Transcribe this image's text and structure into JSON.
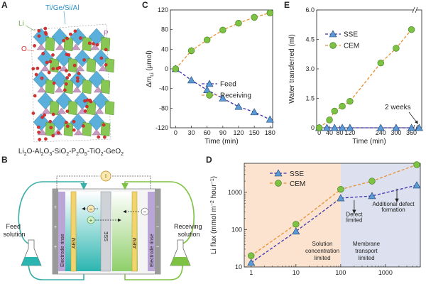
{
  "panels": {
    "A": {
      "letter": "A",
      "elements": {
        "li": "Li",
        "o": "O",
        "p": "P",
        "top": "Ti/Ge/Si/Al"
      },
      "formula_parts": [
        "Li",
        "2",
        "O-Al",
        "2",
        "O",
        "3",
        "-SiO",
        "2",
        "-P",
        "2",
        "O",
        "5",
        "-TiO",
        "2",
        "-GeO",
        "2"
      ]
    },
    "B": {
      "letter": "B",
      "feed": [
        "Feed",
        "solution"
      ],
      "receiving": [
        "Receiving",
        "solution"
      ],
      "electrode_rinse": "Electrode rinse",
      "aem": "AEM",
      "sse": "SSE",
      "minus": "−",
      "plus": "+",
      "meter": "I"
    },
    "C": {
      "letter": "C"
    },
    "D": {
      "letter": "D",
      "annotations": {
        "solution_limited": [
          "Solution",
          "concentration",
          "limited"
        ],
        "membrane_limited": [
          "Membrane",
          "transport",
          "limited"
        ],
        "defect": [
          "Defect",
          "limited"
        ],
        "additional": [
          "Additional defect",
          "formation"
        ]
      }
    },
    "E": {
      "letter": "E",
      "annotation": "2 weeks"
    }
  },
  "colors": {
    "sse": "#3a2fb0",
    "cem": "#e89030",
    "sse_marker": "#5b9bd5",
    "cem_marker": "#7dc242",
    "region_left": "#fbe3cf",
    "region_right": "#dde0ee",
    "green_membrane": "#7dc242",
    "blue_membrane": "#4aa8d8"
  },
  "chart_data": [
    {
      "id": "C",
      "type": "scatter",
      "xlabel": "Time (min)",
      "ylabel": "Δm_Li (μmol)",
      "ylabel_parts": [
        "Δ",
        "m",
        "Li",
        " (μmol)"
      ],
      "xlim": [
        -10,
        185
      ],
      "ylim": [
        -120,
        120
      ],
      "xticks": [
        0,
        30,
        60,
        90,
        120,
        150,
        180
      ],
      "yticks": [
        -120,
        -80,
        -40,
        0,
        40,
        80,
        120
      ],
      "legend_position": "center-right",
      "series": [
        {
          "name": "Feed",
          "color": "#3a2fb0",
          "marker": "triangle",
          "x": [
            0,
            30,
            60,
            90,
            120,
            150,
            180
          ],
          "y": [
            0,
            -23,
            -43,
            -60,
            -77,
            -88,
            -103
          ],
          "err": [
            0,
            3,
            3,
            3,
            4,
            4,
            6
          ]
        },
        {
          "name": "Receiving",
          "color": "#e89030",
          "marker": "circle",
          "x": [
            0,
            30,
            60,
            90,
            120,
            150,
            180
          ],
          "y": [
            0,
            37,
            59,
            79,
            93,
            105,
            114
          ],
          "err": [
            0,
            7,
            5,
            5,
            4,
            3,
            3
          ]
        }
      ]
    },
    {
      "id": "E",
      "type": "scatter",
      "xlabel": "Time (min)",
      "ylabel": "Water transferred (ml)",
      "xlim": [
        -10,
        400
      ],
      "ylim": [
        0,
        6
      ],
      "xticks": [
        0,
        40,
        80,
        120,
        240,
        300,
        360
      ],
      "yticks": [
        0,
        1.5,
        3.0,
        4.5,
        6.0
      ],
      "ytick_labels": [
        "0",
        "1.5",
        "3.0",
        "4.5",
        "6.0"
      ],
      "legend_position": "top-left",
      "series": [
        {
          "name": "SSE",
          "color": "#3a2fb0",
          "marker": "triangle",
          "x": [
            0,
            30,
            60,
            90,
            120,
            240,
            300,
            360,
            390
          ],
          "y": [
            0,
            0,
            0,
            0,
            0,
            0,
            0,
            0,
            0
          ]
        },
        {
          "name": "CEM",
          "color": "#e89030",
          "marker": "circle",
          "x": [
            0,
            40,
            60,
            90,
            120,
            240,
            300,
            360
          ],
          "y": [
            0,
            0.4,
            0.85,
            1.1,
            1.35,
            3.3,
            4.05,
            5.0
          ],
          "err": [
            0,
            0.1,
            0.1,
            0.1,
            0.1,
            0.1,
            0.1,
            0.15
          ]
        }
      ]
    },
    {
      "id": "D",
      "type": "scatter",
      "xscale": "log",
      "yscale": "log",
      "xlabel": "",
      "ylabel": "Li flux (mmol m⁻² hour⁻¹)",
      "ylabel_parts": [
        "Li flux (mmol m",
        "−2",
        " hour",
        "−1",
        ")"
      ],
      "xlim": [
        0.7,
        6000
      ],
      "ylim": [
        10,
        6000
      ],
      "xticks": [
        1,
        10,
        100,
        1000
      ],
      "xtick_labels": [
        "1",
        "10",
        "100",
        "1000"
      ],
      "yticks": [
        10,
        100,
        1000
      ],
      "ytick_labels": [
        "10",
        "100",
        "1000"
      ],
      "regions": [
        {
          "from": 0.7,
          "to": 100
        },
        {
          "from": 100,
          "to": 6000
        }
      ],
      "legend_position": "top-left",
      "series": [
        {
          "name": "SSE",
          "color": "#3a2fb0",
          "marker": "triangle",
          "x": [
            1,
            10,
            100,
            500,
            5000
          ],
          "y": [
            13,
            90,
            700,
            800,
            1550
          ]
        },
        {
          "name": "CEM",
          "color": "#e89030",
          "marker": "circle",
          "x": [
            1,
            10,
            100,
            500,
            5000
          ],
          "y": [
            20,
            140,
            1200,
            2000,
            5500
          ]
        }
      ]
    }
  ]
}
